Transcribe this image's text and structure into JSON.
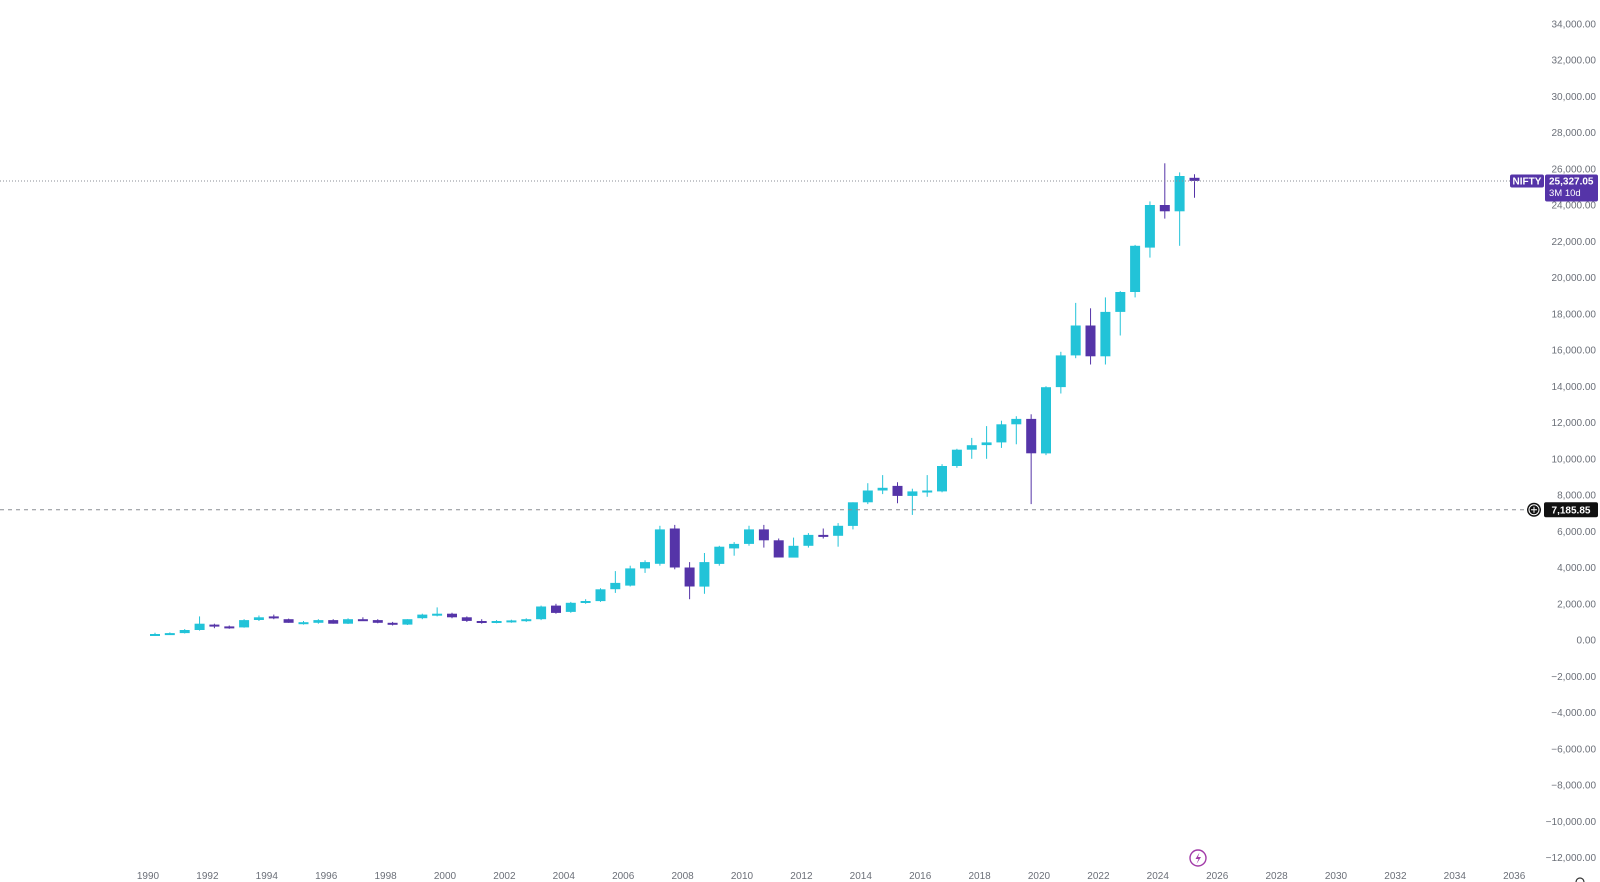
{
  "colors": {
    "up": "#22c3d8",
    "down": "#5534a8",
    "axis_text": "#6b6f78",
    "tag_bg": "#5534a8",
    "cross_bg": "#111111",
    "line": "#8a8d94"
  },
  "icons": {
    "crosshair_plus": "plus-circle-icon",
    "replay": "lightning-icon",
    "settings": "gear-icon"
  },
  "chart_data": {
    "type": "candlestick",
    "symbol": "NIFTY",
    "interval": "3M",
    "y_ticks": [
      34000,
      32000,
      30000,
      28000,
      26000,
      24000,
      22000,
      20000,
      18000,
      16000,
      14000,
      12000,
      10000,
      8000,
      6000,
      4000,
      2000,
      0,
      -2000,
      -4000,
      -6000,
      -8000,
      -10000,
      -12000
    ],
    "y_tick_labels": [
      "34,000.00",
      "32,000.00",
      "30,000.00",
      "28,000.00",
      "26,000.00",
      "24,000.00",
      "22,000.00",
      "20,000.00",
      "18,000.00",
      "16,000.00",
      "14,000.00",
      "12,000.00",
      "10,000.00",
      "8,000.00",
      "6,000.00",
      "4,000.00",
      "2,000.00",
      "0.00",
      "−2,000.00",
      "−4,000.00",
      "−6,000.00",
      "−8,000.00",
      "−10,000.00",
      "−12,000.00"
    ],
    "x_ticks": [
      "1990",
      "1992",
      "1994",
      "1996",
      "1998",
      "2000",
      "2002",
      "2004",
      "2006",
      "2008",
      "2010",
      "2012",
      "2014",
      "2016",
      "2018",
      "2020",
      "2022",
      "2024",
      "2026",
      "2028",
      "2030",
      "2032",
      "2034",
      "2036"
    ],
    "last_price": {
      "label": "NIFTY",
      "value": 25327.05,
      "value_text": "25,327.05",
      "countdown": "3M 10d"
    },
    "crosshair": {
      "value": 7185.85,
      "value_text": "7,185.85"
    },
    "candles": [
      {
        "t": 1990.0,
        "o": 280,
        "h": 400,
        "l": 260,
        "c": 330
      },
      {
        "t": 1990.5,
        "o": 330,
        "h": 420,
        "l": 300,
        "c": 380
      },
      {
        "t": 1991.0,
        "o": 380,
        "h": 600,
        "l": 360,
        "c": 550
      },
      {
        "t": 1991.5,
        "o": 550,
        "h": 1300,
        "l": 520,
        "c": 900
      },
      {
        "t": 1992.0,
        "o": 850,
        "h": 900,
        "l": 650,
        "c": 750
      },
      {
        "t": 1992.5,
        "o": 750,
        "h": 800,
        "l": 620,
        "c": 700
      },
      {
        "t": 1993.0,
        "o": 700,
        "h": 1150,
        "l": 680,
        "c": 1100
      },
      {
        "t": 1993.5,
        "o": 1100,
        "h": 1350,
        "l": 1050,
        "c": 1250
      },
      {
        "t": 1994.0,
        "o": 1300,
        "h": 1400,
        "l": 1150,
        "c": 1200
      },
      {
        "t": 1994.5,
        "o": 1150,
        "h": 1180,
        "l": 950,
        "c": 950
      },
      {
        "t": 1995.0,
        "o": 950,
        "h": 1050,
        "l": 850,
        "c": 980
      },
      {
        "t": 1995.5,
        "o": 950,
        "h": 1150,
        "l": 900,
        "c": 1100
      },
      {
        "t": 1996.0,
        "o": 1100,
        "h": 1150,
        "l": 900,
        "c": 900
      },
      {
        "t": 1996.5,
        "o": 900,
        "h": 1200,
        "l": 880,
        "c": 1150
      },
      {
        "t": 1997.0,
        "o": 1150,
        "h": 1250,
        "l": 1050,
        "c": 1100
      },
      {
        "t": 1997.5,
        "o": 1100,
        "h": 1150,
        "l": 920,
        "c": 950
      },
      {
        "t": 1998.0,
        "o": 950,
        "h": 1000,
        "l": 800,
        "c": 850
      },
      {
        "t": 1998.5,
        "o": 850,
        "h": 1150,
        "l": 830,
        "c": 1150
      },
      {
        "t": 1999.0,
        "o": 1200,
        "h": 1450,
        "l": 1150,
        "c": 1400
      },
      {
        "t": 1999.5,
        "o": 1400,
        "h": 1800,
        "l": 1300,
        "c": 1450
      },
      {
        "t": 2000.0,
        "o": 1450,
        "h": 1500,
        "l": 1200,
        "c": 1250
      },
      {
        "t": 2000.5,
        "o": 1250,
        "h": 1300,
        "l": 1000,
        "c": 1050
      },
      {
        "t": 2001.0,
        "o": 1050,
        "h": 1150,
        "l": 900,
        "c": 950
      },
      {
        "t": 2001.5,
        "o": 950,
        "h": 1100,
        "l": 920,
        "c": 1050
      },
      {
        "t": 2002.0,
        "o": 1050,
        "h": 1120,
        "l": 950,
        "c": 1080
      },
      {
        "t": 2002.5,
        "o": 1080,
        "h": 1200,
        "l": 1000,
        "c": 1150
      },
      {
        "t": 2003.0,
        "o": 1150,
        "h": 1900,
        "l": 1100,
        "c": 1850
      },
      {
        "t": 2003.5,
        "o": 1900,
        "h": 2000,
        "l": 1450,
        "c": 1500
      },
      {
        "t": 2004.0,
        "o": 1550,
        "h": 2100,
        "l": 1500,
        "c": 2050
      },
      {
        "t": 2004.5,
        "o": 2050,
        "h": 2250,
        "l": 2000,
        "c": 2150
      },
      {
        "t": 2005.0,
        "o": 2150,
        "h": 2850,
        "l": 2100,
        "c": 2800
      },
      {
        "t": 2005.5,
        "o": 2800,
        "h": 3800,
        "l": 2600,
        "c": 3150
      },
      {
        "t": 2006.0,
        "o": 3000,
        "h": 4100,
        "l": 2950,
        "c": 3950
      },
      {
        "t": 2006.5,
        "o": 3950,
        "h": 4400,
        "l": 3700,
        "c": 4300
      },
      {
        "t": 2007.0,
        "o": 4200,
        "h": 6300,
        "l": 4100,
        "c": 6100
      },
      {
        "t": 2007.5,
        "o": 6150,
        "h": 6350,
        "l": 3900,
        "c": 4000
      },
      {
        "t": 2008.0,
        "o": 4000,
        "h": 4300,
        "l": 2250,
        "c": 2950
      },
      {
        "t": 2008.5,
        "o": 2950,
        "h": 4800,
        "l": 2550,
        "c": 4300
      },
      {
        "t": 2009.0,
        "o": 4200,
        "h": 5200,
        "l": 4100,
        "c": 5150
      },
      {
        "t": 2009.5,
        "o": 5050,
        "h": 5400,
        "l": 4650,
        "c": 5300
      },
      {
        "t": 2010.0,
        "o": 5300,
        "h": 6300,
        "l": 5200,
        "c": 6100
      },
      {
        "t": 2010.5,
        "o": 6100,
        "h": 6350,
        "l": 5100,
        "c": 5500
      },
      {
        "t": 2011.0,
        "o": 5500,
        "h": 5600,
        "l": 4550,
        "c": 4550
      },
      {
        "t": 2011.5,
        "o": 4550,
        "h": 5650,
        "l": 4550,
        "c": 5200
      },
      {
        "t": 2012.0,
        "o": 5200,
        "h": 5900,
        "l": 5100,
        "c": 5800
      },
      {
        "t": 2012.5,
        "o": 5800,
        "h": 6150,
        "l": 5600,
        "c": 5750
      },
      {
        "t": 2013.0,
        "o": 5750,
        "h": 6450,
        "l": 5150,
        "c": 6300
      },
      {
        "t": 2013.5,
        "o": 6300,
        "h": 7600,
        "l": 6100,
        "c": 7600
      },
      {
        "t": 2014.0,
        "o": 7600,
        "h": 8650,
        "l": 7500,
        "c": 8250
      },
      {
        "t": 2014.5,
        "o": 8250,
        "h": 9100,
        "l": 8050,
        "c": 8400
      },
      {
        "t": 2015.0,
        "o": 8500,
        "h": 8700,
        "l": 7550,
        "c": 7950
      },
      {
        "t": 2015.5,
        "o": 7950,
        "h": 8350,
        "l": 6900,
        "c": 8200
      },
      {
        "t": 2016.0,
        "o": 8150,
        "h": 9100,
        "l": 7900,
        "c": 8250
      },
      {
        "t": 2016.5,
        "o": 8200,
        "h": 9700,
        "l": 8150,
        "c": 9600
      },
      {
        "t": 2017.0,
        "o": 9600,
        "h": 10550,
        "l": 9500,
        "c": 10500
      },
      {
        "t": 2017.5,
        "o": 10500,
        "h": 11150,
        "l": 10000,
        "c": 10750
      },
      {
        "t": 2018.0,
        "o": 10750,
        "h": 11800,
        "l": 10000,
        "c": 10900
      },
      {
        "t": 2018.5,
        "o": 10900,
        "h": 12100,
        "l": 10600,
        "c": 11900
      },
      {
        "t": 2019.0,
        "o": 11900,
        "h": 12350,
        "l": 10800,
        "c": 12200
      },
      {
        "t": 2019.5,
        "o": 12200,
        "h": 12450,
        "l": 7500,
        "c": 10300
      },
      {
        "t": 2020.0,
        "o": 10300,
        "h": 14000,
        "l": 10200,
        "c": 13950
      },
      {
        "t": 2020.5,
        "o": 13950,
        "h": 15900,
        "l": 13600,
        "c": 15700
      },
      {
        "t": 2021.0,
        "o": 15700,
        "h": 18600,
        "l": 15550,
        "c": 17350
      },
      {
        "t": 2021.5,
        "o": 17350,
        "h": 18300,
        "l": 15200,
        "c": 15650
      },
      {
        "t": 2022.0,
        "o": 15650,
        "h": 18900,
        "l": 15200,
        "c": 18100
      },
      {
        "t": 2022.5,
        "o": 18100,
        "h": 19250,
        "l": 16800,
        "c": 19200
      },
      {
        "t": 2023.0,
        "o": 19200,
        "h": 21800,
        "l": 18900,
        "c": 21750
      },
      {
        "t": 2023.5,
        "o": 21650,
        "h": 24200,
        "l": 21100,
        "c": 24000
      },
      {
        "t": 2024.0,
        "o": 24000,
        "h": 26300,
        "l": 23250,
        "c": 23650
      },
      {
        "t": 2024.5,
        "o": 23650,
        "h": 25800,
        "l": 21750,
        "c": 25600
      },
      {
        "t": 2025.0,
        "o": 25500,
        "h": 25700,
        "l": 24400,
        "c": 25327
      }
    ]
  }
}
